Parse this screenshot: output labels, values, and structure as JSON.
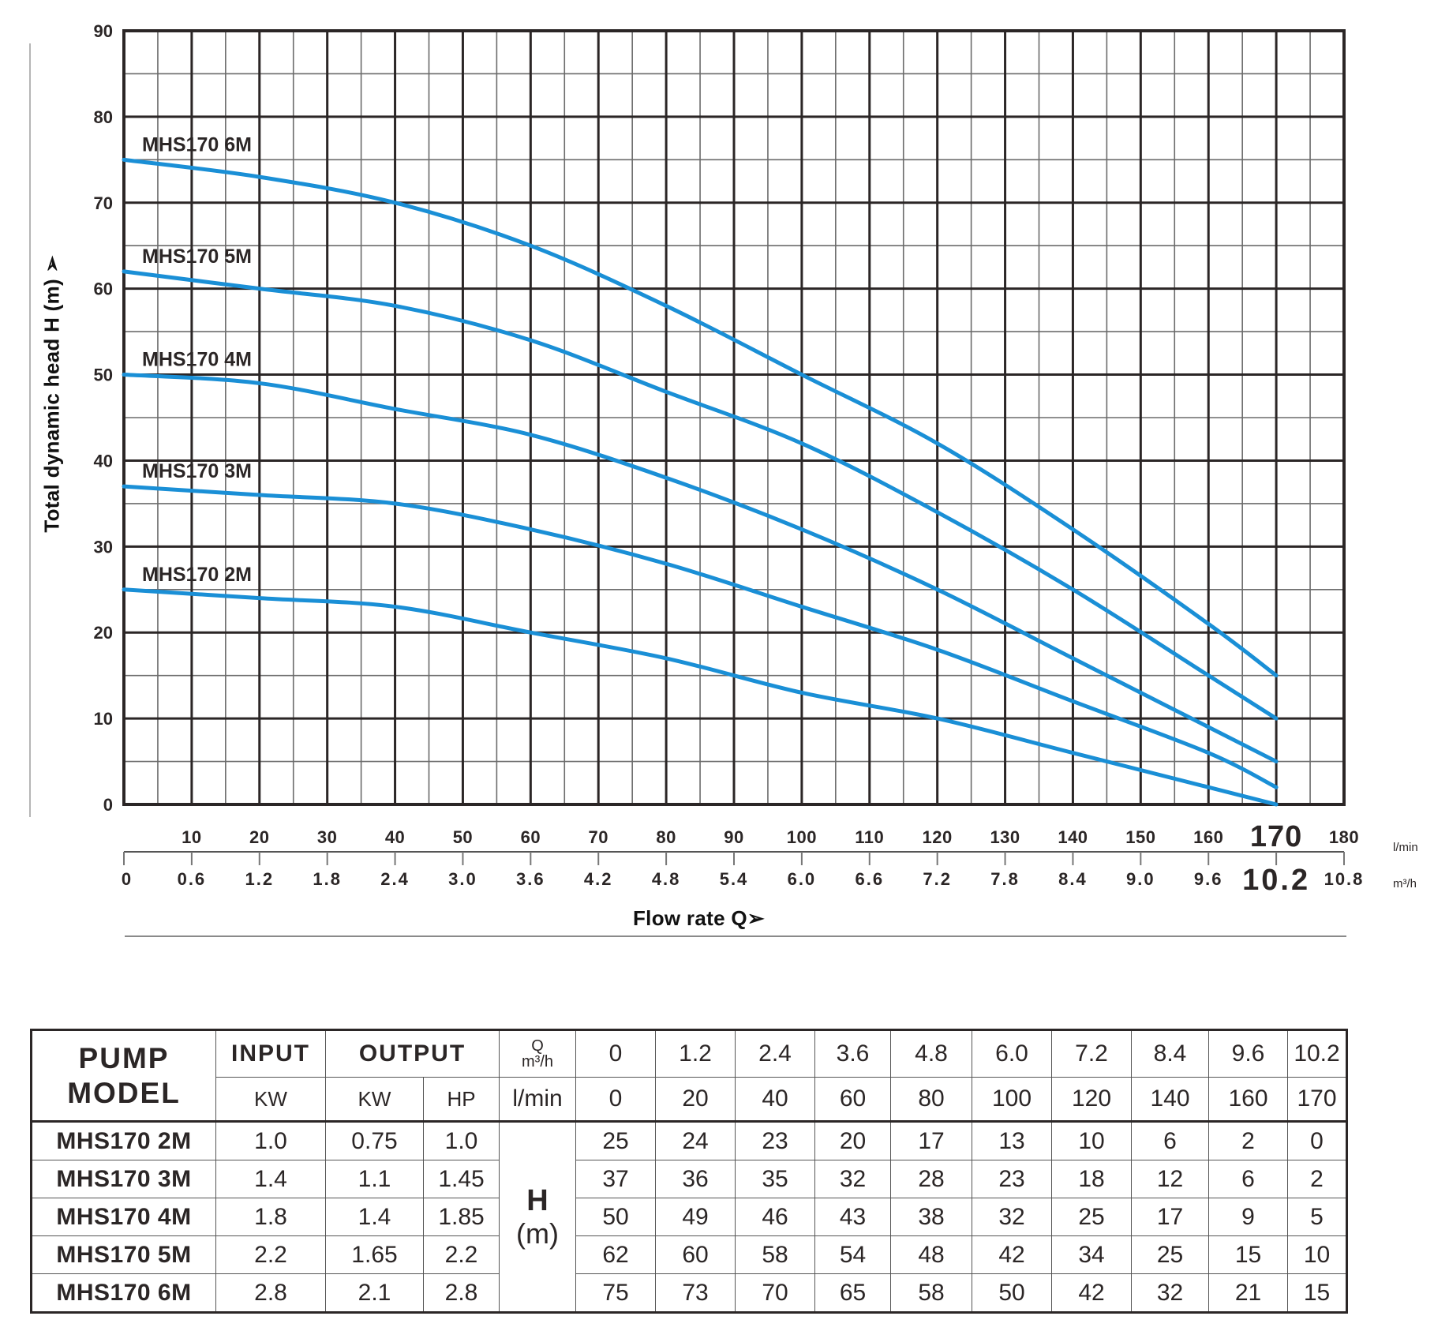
{
  "chart_data": {
    "type": "line",
    "title": "",
    "xlabel": "Flow rate Q",
    "ylabel": "Total dynamic head H (m)",
    "x_unit_primary": "l/min",
    "x_unit_secondary": "m³/h",
    "xlim": [
      0,
      180
    ],
    "ylim": [
      0,
      90
    ],
    "grid": true,
    "y_ticks": [
      0,
      10,
      20,
      30,
      40,
      50,
      60,
      70,
      80,
      90
    ],
    "x_ticks_lmin": [
      "10",
      "20",
      "30",
      "40",
      "50",
      "60",
      "70",
      "80",
      "90",
      "100",
      "110",
      "120",
      "130",
      "140",
      "150",
      "160",
      "170",
      "180"
    ],
    "x_ticks_m3h": [
      "0",
      "0.6",
      "1.2",
      "1.8",
      "2.4",
      "3.0",
      "3.6",
      "4.2",
      "4.8",
      "5.4",
      "6.0",
      "6.6",
      "7.2",
      "7.8",
      "8.4",
      "9.0",
      "9.6",
      "10.2",
      "10.8"
    ],
    "highlight_x": {
      "lmin": "170",
      "m3h": "10.2"
    },
    "line_color": "#1a8fd6",
    "x": [
      0,
      20,
      40,
      60,
      80,
      100,
      120,
      140,
      160,
      170
    ],
    "series": [
      {
        "name": "MHS170 2M",
        "values": [
          25,
          24,
          23,
          20,
          17,
          13,
          10,
          6,
          2,
          0
        ]
      },
      {
        "name": "MHS170 3M",
        "values": [
          37,
          36,
          35,
          32,
          28,
          23,
          18,
          12,
          6,
          2
        ]
      },
      {
        "name": "MHS170 4M",
        "values": [
          50,
          49,
          46,
          43,
          38,
          32,
          25,
          17,
          9,
          5
        ]
      },
      {
        "name": "MHS170 5M",
        "values": [
          62,
          60,
          58,
          54,
          48,
          42,
          34,
          25,
          15,
          10
        ]
      },
      {
        "name": "MHS170 6M",
        "values": [
          75,
          73,
          70,
          65,
          58,
          50,
          42,
          32,
          21,
          15
        ]
      }
    ]
  },
  "axis": {
    "ylabel": "Total dynamic head H (m) ➢",
    "xlabel": "Flow rate Q➢",
    "unit_lmin": "l/min",
    "unit_m3h": "m³/h"
  },
  "table": {
    "header": {
      "model": [
        "PUMP",
        "MODEL"
      ],
      "input": "INPUT",
      "output": "OUTPUT",
      "q_label": "Q",
      "q_unit": "m³/h",
      "input_kw": "KW",
      "output_kw": "KW",
      "output_hp": "HP",
      "lmin_label": "l/min",
      "m3h": [
        "0",
        "1.2",
        "2.4",
        "3.6",
        "4.8",
        "6.0",
        "7.2",
        "8.4",
        "9.6",
        "10.2"
      ],
      "lmin": [
        "0",
        "20",
        "40",
        "60",
        "80",
        "100",
        "120",
        "140",
        "160",
        "170"
      ],
      "h_label": "H",
      "h_unit": "(m)"
    },
    "rows": [
      {
        "model": "MHS170 2M",
        "input_kw": "1.0",
        "output_kw": "0.75",
        "output_hp": "1.0",
        "h": [
          "25",
          "24",
          "23",
          "20",
          "17",
          "13",
          "10",
          "6",
          "2",
          "0"
        ]
      },
      {
        "model": "MHS170 3M",
        "input_kw": "1.4",
        "output_kw": "1.1",
        "output_hp": "1.45",
        "h": [
          "37",
          "36",
          "35",
          "32",
          "28",
          "23",
          "18",
          "12",
          "6",
          "2"
        ]
      },
      {
        "model": "MHS170 4M",
        "input_kw": "1.8",
        "output_kw": "1.4",
        "output_hp": "1.85",
        "h": [
          "50",
          "49",
          "46",
          "43",
          "38",
          "32",
          "25",
          "17",
          "9",
          "5"
        ]
      },
      {
        "model": "MHS170 5M",
        "input_kw": "2.2",
        "output_kw": "1.65",
        "output_hp": "2.2",
        "h": [
          "62",
          "60",
          "58",
          "54",
          "48",
          "42",
          "34",
          "25",
          "15",
          "10"
        ]
      },
      {
        "model": "MHS170 6M",
        "input_kw": "2.8",
        "output_kw": "2.1",
        "output_hp": "2.8",
        "h": [
          "75",
          "73",
          "70",
          "65",
          "58",
          "50",
          "42",
          "32",
          "21",
          "15"
        ]
      }
    ]
  }
}
